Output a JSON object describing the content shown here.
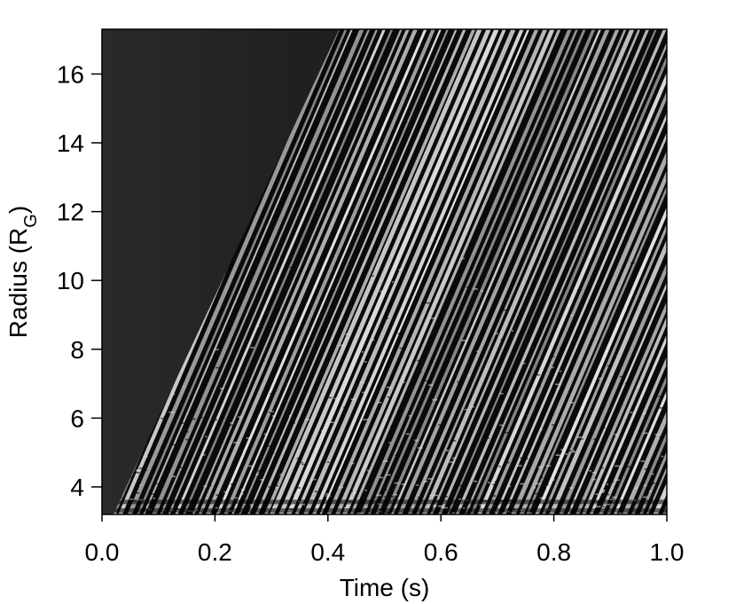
{
  "chart_data": {
    "type": "heatmap",
    "title": "",
    "xlabel": "Time (s)",
    "ylabel_main": "Radius (R",
    "ylabel_sub": "G",
    "ylabel_close": ")",
    "xlim": [
      0.0,
      1.0
    ],
    "ylim": [
      3.2,
      17.3
    ],
    "xticks": [
      0.0,
      0.2,
      0.4,
      0.6,
      0.8,
      1.0
    ],
    "xtick_labels": [
      "0.0",
      "0.2",
      "0.4",
      "0.6",
      "0.8",
      "1.0"
    ],
    "yticks": [
      4,
      6,
      8,
      10,
      12,
      14,
      16
    ],
    "ytick_labels": [
      "4",
      "6",
      "8",
      "10",
      "12",
      "14",
      "16"
    ],
    "grid": false,
    "colormap": "grayscale",
    "colors": {
      "background": "#ffffff",
      "dark": "#0a0a0a",
      "light": "#e6e6e6"
    },
    "front": {
      "x": [
        0.02,
        0.42
      ],
      "y": [
        3.2,
        17.3
      ]
    }
  }
}
